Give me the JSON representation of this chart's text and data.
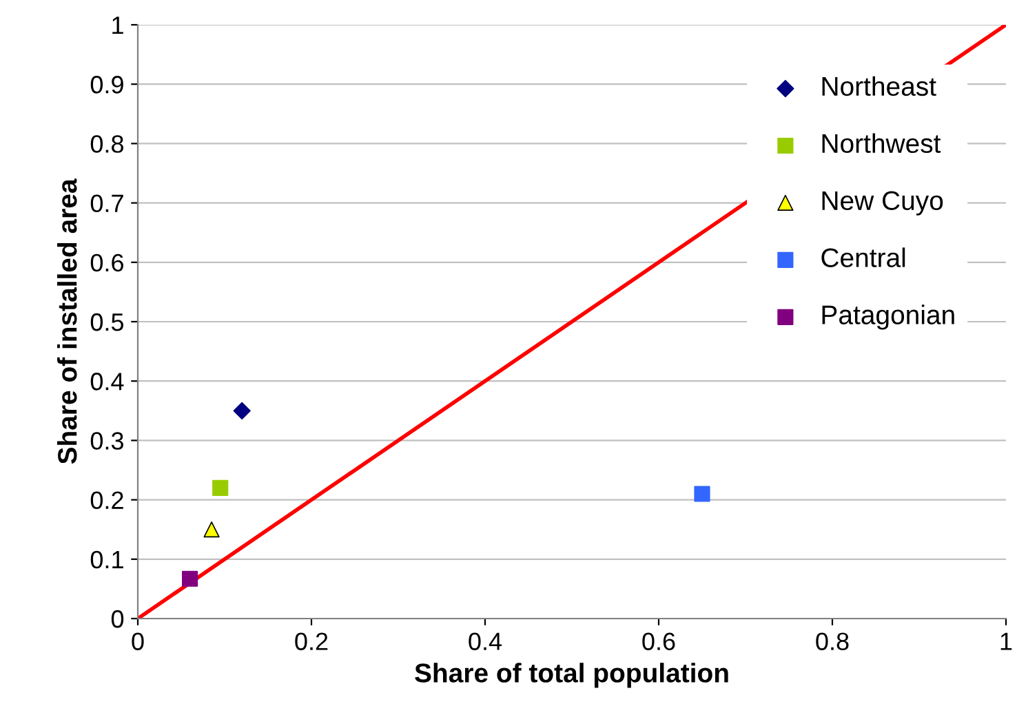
{
  "chart_data": {
    "type": "scatter",
    "xlabel": "Share of total population",
    "ylabel": "Share of installed area",
    "xlim": [
      0,
      1
    ],
    "ylim": [
      0,
      1
    ],
    "xticks": [
      0,
      0.2,
      0.4,
      0.6,
      0.8,
      1
    ],
    "yticks": [
      0,
      0.1,
      0.2,
      0.3,
      0.4,
      0.5,
      0.6,
      0.7,
      0.8,
      0.9,
      1
    ],
    "grid": "y",
    "legend": "right",
    "series": [
      {
        "name": "Northeast",
        "color": "#000080",
        "marker": "diamond",
        "x": [
          0.12
        ],
        "values": [
          0.35
        ]
      },
      {
        "name": "Northwest",
        "color": "#99cc00",
        "marker": "square",
        "x": [
          0.095
        ],
        "values": [
          0.22
        ]
      },
      {
        "name": "New Cuyo",
        "color": "#ffff00",
        "marker": "triangle",
        "x": [
          0.085
        ],
        "values": [
          0.15
        ]
      },
      {
        "name": "Central",
        "color": "#3366ff",
        "marker": "square",
        "x": [
          0.65
        ],
        "values": [
          0.21
        ]
      },
      {
        "name": "Patagonian",
        "color": "#800080",
        "marker": "square",
        "x": [
          0.06
        ],
        "values": [
          0.067
        ]
      },
      {
        "type": "line",
        "color": "#ff0000",
        "marker": "none",
        "x": [
          0,
          1
        ],
        "values": [
          0,
          1
        ]
      }
    ]
  }
}
